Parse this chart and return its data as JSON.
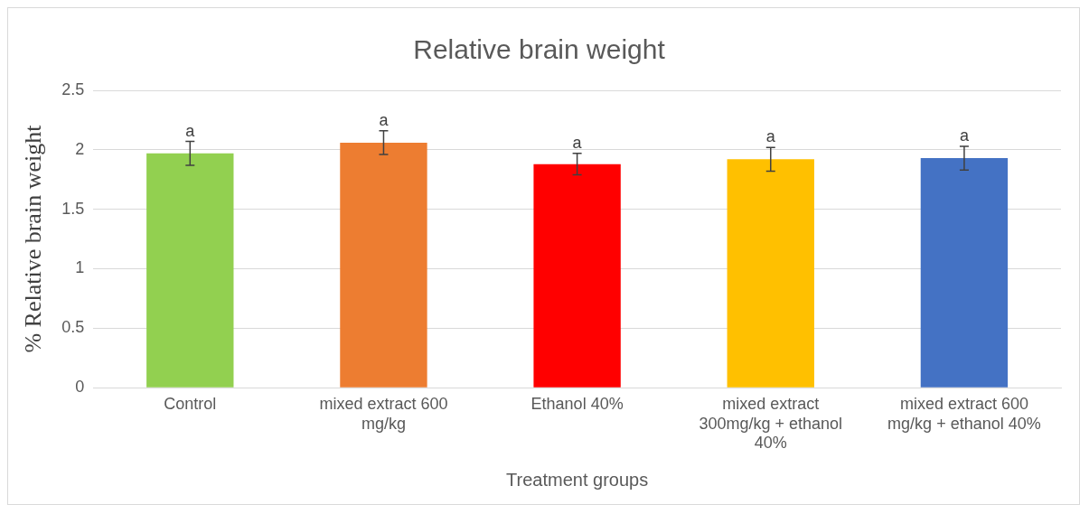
{
  "chart_data": {
    "type": "bar",
    "title": "Relative brain weight",
    "xlabel": "Treatment groups",
    "ylabel": "% Relative brain weight",
    "categories": [
      "Control",
      "mixed extract 600 mg/kg",
      "Ethanol 40%",
      "mixed extract 300mg/kg + ethanol 40%",
      "mixed extract 600 mg/kg + ethanol 40%"
    ],
    "values": [
      1.97,
      2.06,
      1.88,
      1.92,
      1.93
    ],
    "colors": [
      "#92d050",
      "#ed7d31",
      "#ff0000",
      "#ffc000",
      "#4472c4"
    ],
    "errors": [
      0.1,
      0.1,
      0.09,
      0.1,
      0.1
    ],
    "ylim": [
      0,
      2.5
    ],
    "yticks": [
      0,
      0.5,
      1,
      1.5,
      2,
      2.5
    ],
    "grid": "y",
    "legend": false,
    "annotations": [
      {
        "text": "a",
        "x": "Control",
        "y": 2.07
      },
      {
        "text": "a",
        "x": "mixed extract 600 mg/kg",
        "y": 2.16
      },
      {
        "text": "a",
        "x": "Ethanol 40%",
        "y": 1.97
      },
      {
        "text": "a",
        "x": "mixed extract 300mg/kg + ethanol 40%",
        "y": 2.02
      },
      {
        "text": "a",
        "x": "mixed extract 600 mg/kg + ethanol 40%",
        "y": 2.03
      }
    ]
  }
}
